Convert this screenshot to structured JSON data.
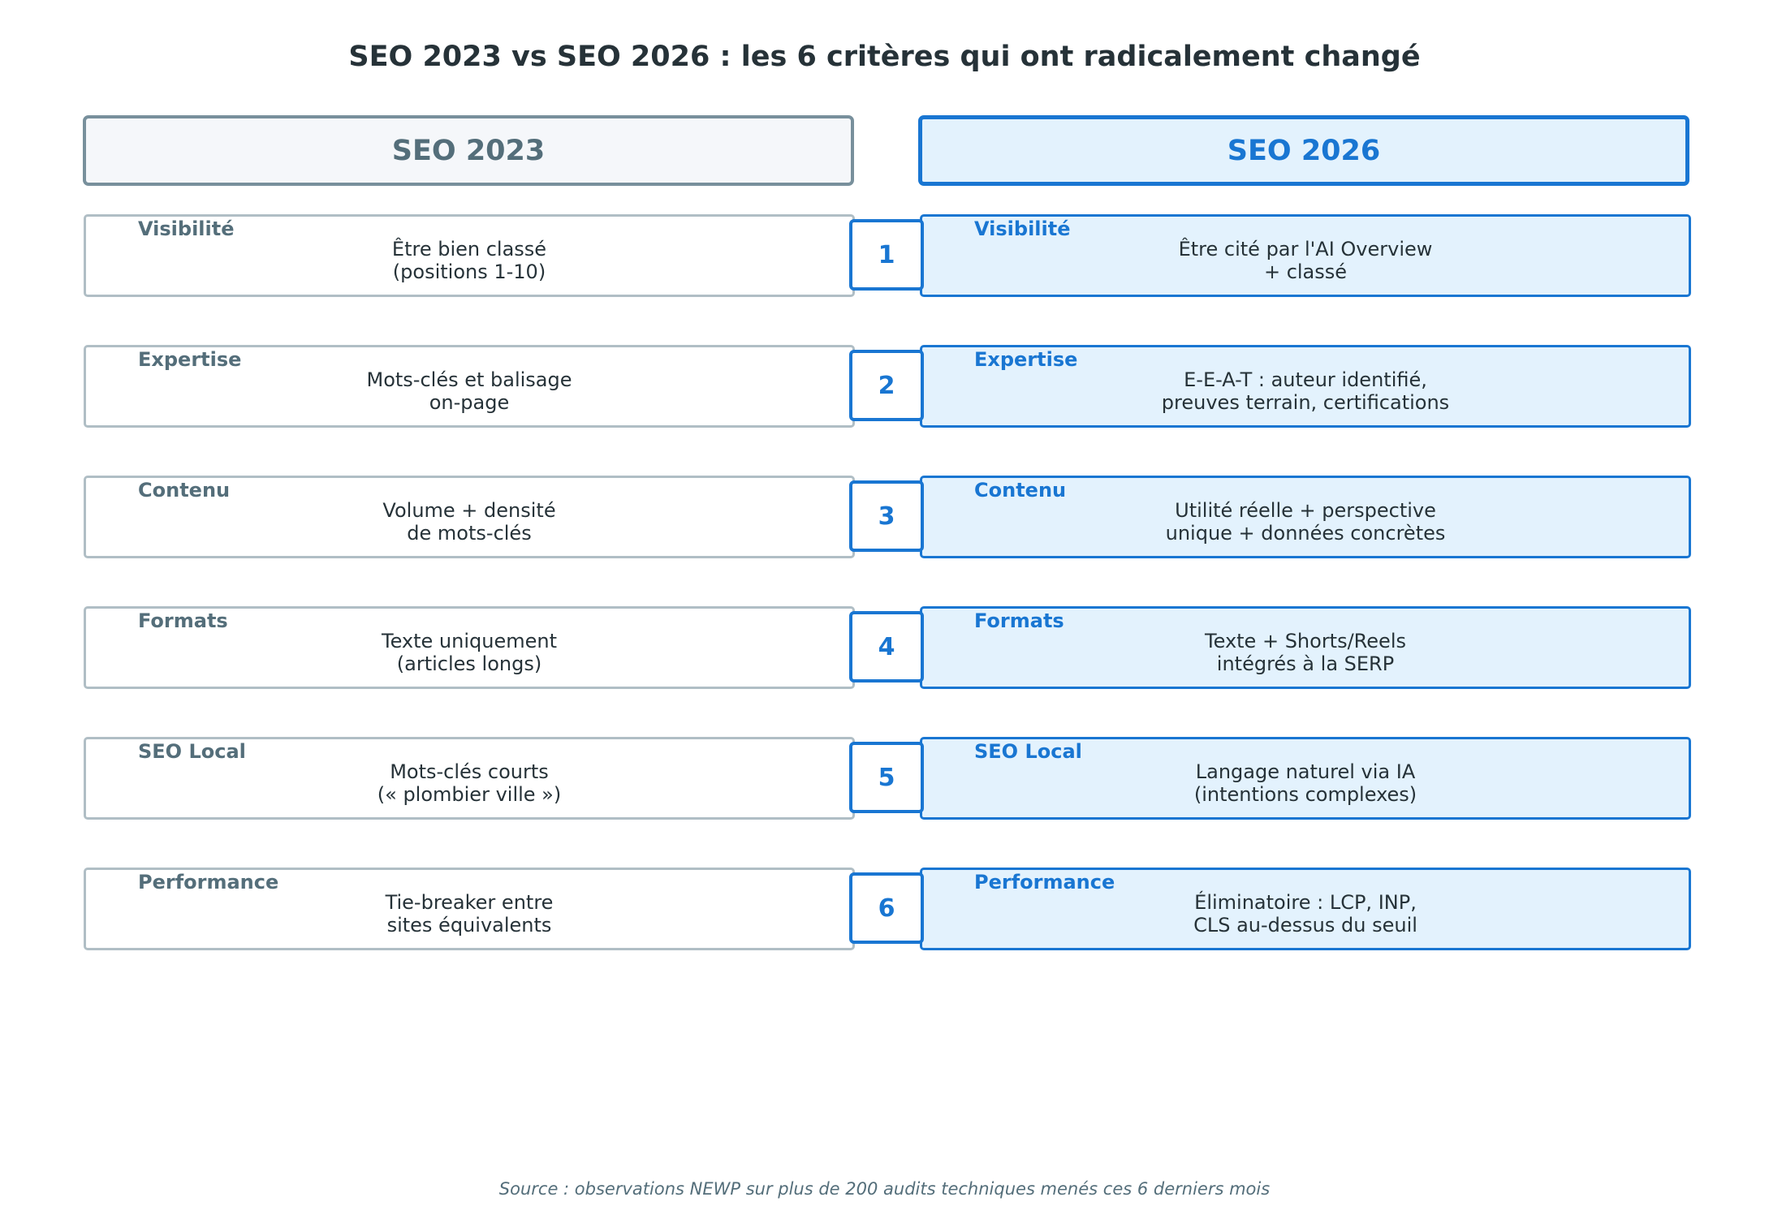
{
  "title": "SEO 2023 vs SEO 2026 : les 6 critères qui ont radicalement changé",
  "columns": {
    "old": "SEO 2023",
    "new": "SEO 2026"
  },
  "rows": [
    {
      "num": "1",
      "old_label": "Visibilité",
      "old_desc": [
        "Être bien classé",
        "(positions 1-10)"
      ],
      "new_label": "Visibilité",
      "new_desc": [
        "Être cité par l'AI Overview",
        "+ classé"
      ]
    },
    {
      "num": "2",
      "old_label": "Expertise",
      "old_desc": [
        "Mots-clés et balisage",
        "on-page"
      ],
      "new_label": "Expertise",
      "new_desc": [
        "E-E-A-T : auteur identifié,",
        "preuves terrain, certifications"
      ]
    },
    {
      "num": "3",
      "old_label": "Contenu",
      "old_desc": [
        "Volume + densité",
        "de mots-clés"
      ],
      "new_label": "Contenu",
      "new_desc": [
        "Utilité réelle + perspective",
        "unique + données concrètes"
      ]
    },
    {
      "num": "4",
      "old_label": "Formats",
      "old_desc": [
        "Texte uniquement",
        "(articles longs)"
      ],
      "new_label": "Formats",
      "new_desc": [
        "Texte + Shorts/Reels",
        "intégrés à la SERP"
      ]
    },
    {
      "num": "5",
      "old_label": "SEO Local",
      "old_desc": [
        "Mots-clés courts",
        "(« plombier ville »)"
      ],
      "new_label": "SEO Local",
      "new_desc": [
        "Langage naturel via IA",
        "(intentions complexes)"
      ]
    },
    {
      "num": "6",
      "old_label": "Performance",
      "old_desc": [
        "Tie-breaker entre",
        "sites équivalents"
      ],
      "new_label": "Performance",
      "new_desc": [
        "Éliminatoire : LCP, INP,",
        "CLS au-dessus du seuil"
      ]
    }
  ],
  "source": "Source : observations NEWP sur plus de 200 audits techniques menés ces 6 derniers mois"
}
